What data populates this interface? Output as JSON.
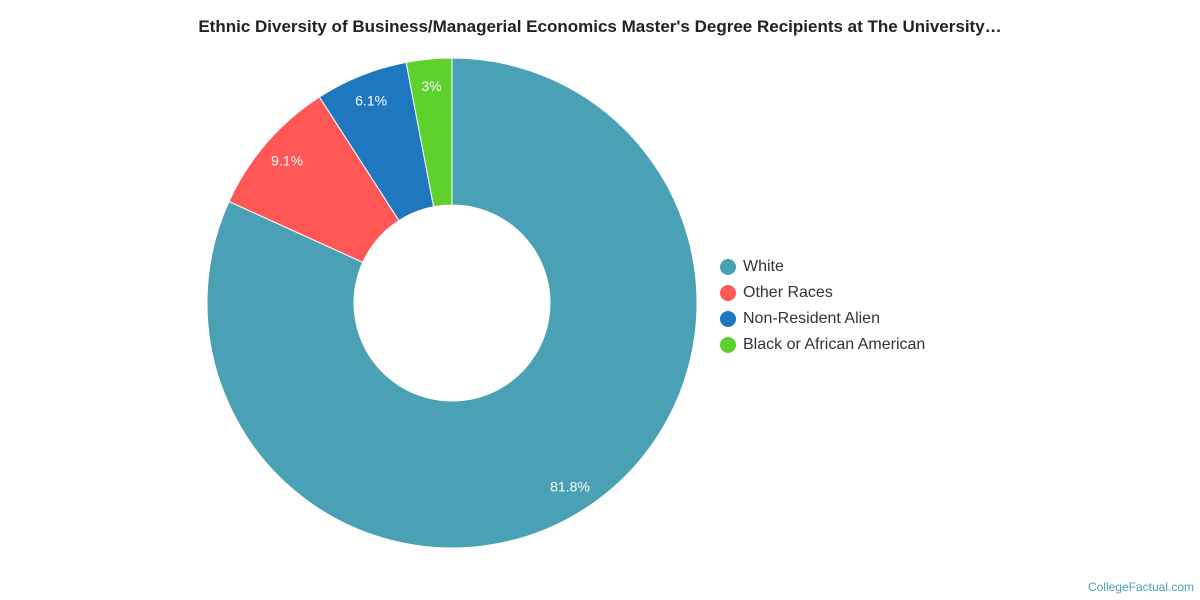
{
  "chart_data": {
    "type": "pie",
    "title": "Ethnic Diversity of Business/Managerial Economics Master's Degree Recipients at The University…",
    "categories": [
      "White",
      "Other Races",
      "Non-Resident Alien",
      "Black or African American"
    ],
    "values": [
      81.8,
      9.1,
      6.1,
      3.0
    ],
    "data_labels": [
      "81.8%",
      "9.1%",
      "6.1%",
      "3%"
    ],
    "colors": [
      "#4aa0b5",
      "#ff5656",
      "#1f77c0",
      "#5fd12c"
    ],
    "donut": true,
    "legend_position": "right"
  },
  "credit": "CollegeFactual.com"
}
